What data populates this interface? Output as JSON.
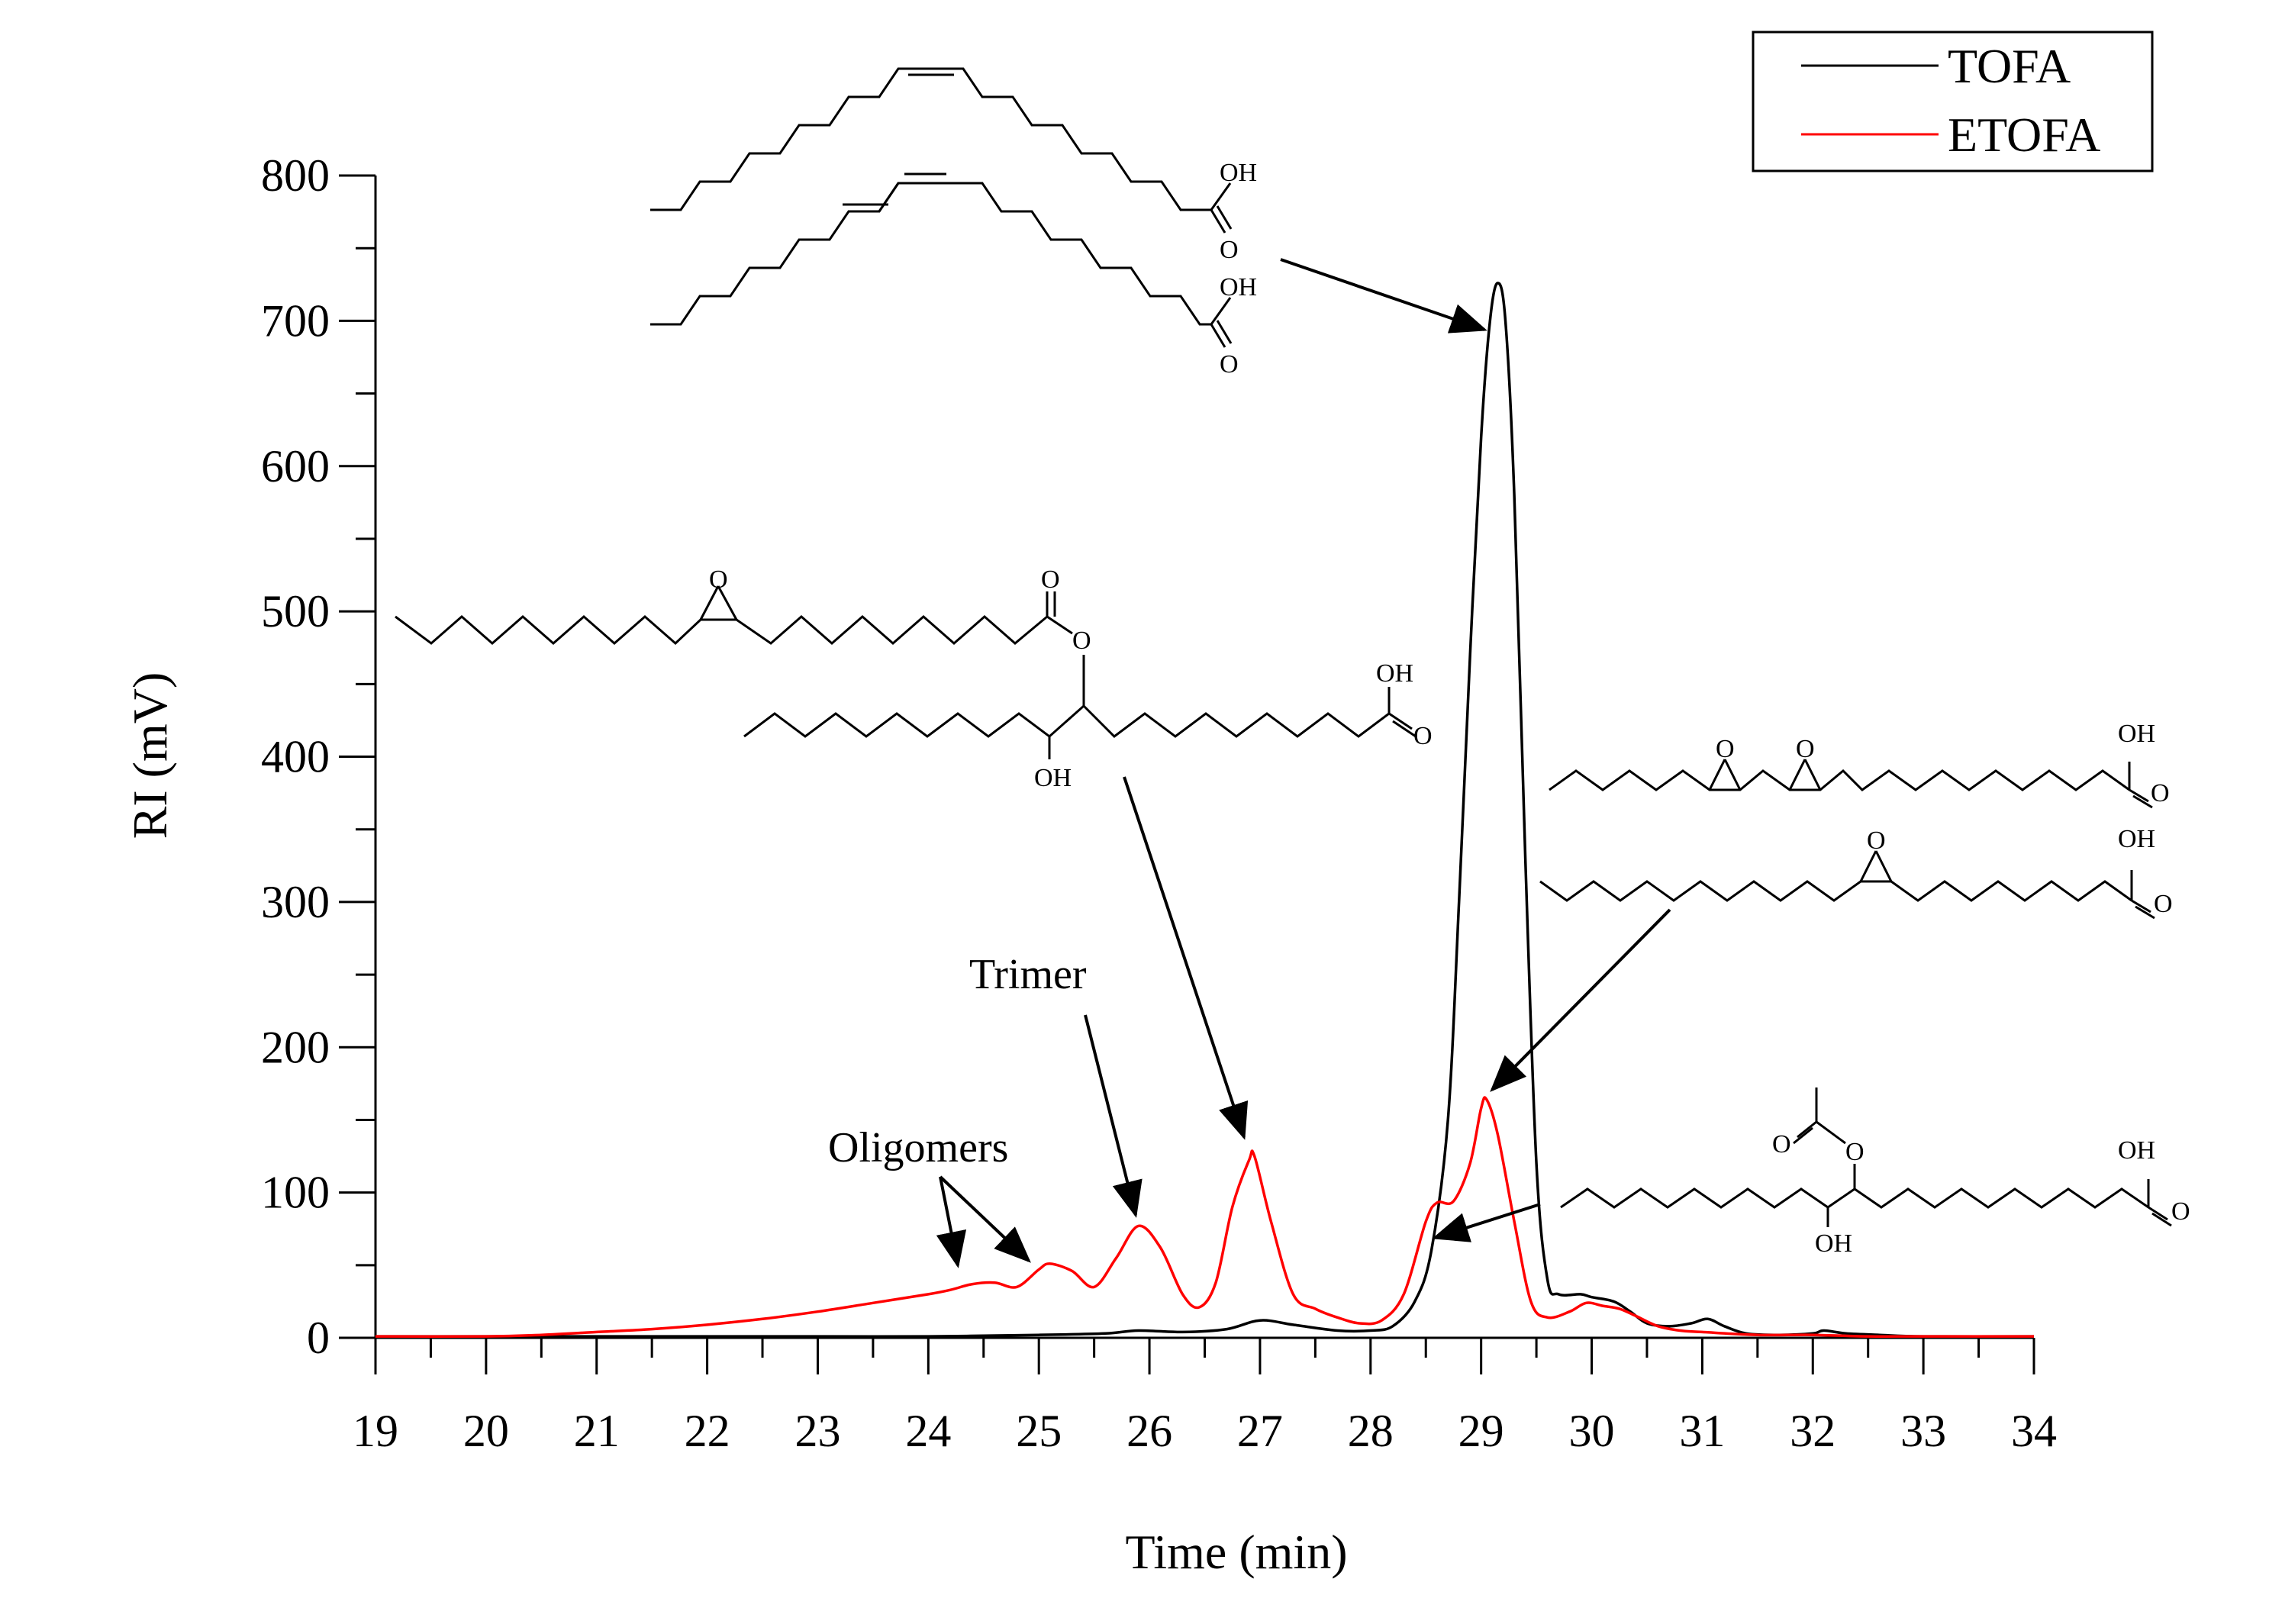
{
  "chart_data": {
    "type": "line",
    "xlabel": "Time (min)",
    "ylabel": "RI (mV)",
    "xlim": [
      19,
      34
    ],
    "ylim": [
      0,
      800
    ],
    "xticks": [
      19,
      20,
      21,
      22,
      23,
      24,
      25,
      26,
      27,
      28,
      29,
      30,
      31,
      32,
      33,
      34
    ],
    "yticks": [
      0,
      100,
      200,
      300,
      400,
      500,
      600,
      700,
      800
    ],
    "legend": {
      "position": "top-right",
      "entries": [
        "TOFA",
        "ETOFA"
      ]
    },
    "series": [
      {
        "name": "TOFA",
        "color": "#000000",
        "x": [
          19,
          20,
          21,
          22,
          23,
          24,
          25,
          25.6,
          25.9,
          26.3,
          26.7,
          27.0,
          27.3,
          27.7,
          28.0,
          28.2,
          28.4,
          28.55,
          28.7,
          28.8,
          28.9,
          29.0,
          29.08,
          29.15,
          29.22,
          29.3,
          29.4,
          29.5,
          29.6,
          29.7,
          29.9,
          30.0,
          30.2,
          30.35,
          30.5,
          30.7,
          30.9,
          31.05,
          31.2,
          31.4,
          31.7,
          32.0,
          32.1,
          32.3,
          32.6,
          33,
          34
        ],
        "values": [
          1,
          1,
          1,
          1,
          1,
          1,
          2,
          3,
          5,
          4,
          6,
          12,
          9,
          5,
          5,
          8,
          25,
          60,
          150,
          300,
          470,
          620,
          700,
          726,
          700,
          580,
          330,
          120,
          40,
          30,
          30,
          28,
          25,
          18,
          10,
          8,
          10,
          13,
          8,
          3,
          2,
          3,
          5,
          3,
          2,
          1,
          1
        ]
      },
      {
        "name": "ETOFA",
        "color": "#ff0000",
        "x": [
          19,
          20,
          20.5,
          21,
          21.5,
          22,
          22.5,
          23,
          23.5,
          24,
          24.2,
          24.4,
          24.6,
          24.8,
          25.0,
          25.1,
          25.3,
          25.5,
          25.7,
          25.9,
          26.1,
          26.3,
          26.45,
          26.6,
          26.75,
          26.9,
          26.95,
          27.1,
          27.3,
          27.5,
          27.7,
          27.9,
          28.1,
          28.3,
          28.5,
          28.6,
          28.75,
          28.9,
          29.0,
          29.05,
          29.15,
          29.3,
          29.45,
          29.6,
          29.8,
          29.95,
          30.1,
          30.25,
          30.4,
          30.6,
          30.8,
          31.0,
          31.5,
          32,
          32.5,
          33,
          34
        ],
        "values": [
          1,
          1,
          2,
          4,
          6,
          9,
          13,
          18,
          24,
          30,
          33,
          37,
          38,
          35,
          47,
          51,
          46,
          35,
          55,
          77,
          62,
          30,
          21,
          38,
          90,
          122,
          125,
          80,
          30,
          20,
          14,
          10,
          12,
          30,
          80,
          93,
          94,
          120,
          158,
          164,
          140,
          80,
          25,
          14,
          18,
          24,
          22,
          20,
          15,
          8,
          5,
          4,
          2,
          2,
          1,
          1,
          1
        ]
      }
    ],
    "annotations": [
      "Trimer",
      "Oligomers"
    ]
  },
  "molecule_labels": {
    "oh": "OH",
    "o": "O"
  }
}
